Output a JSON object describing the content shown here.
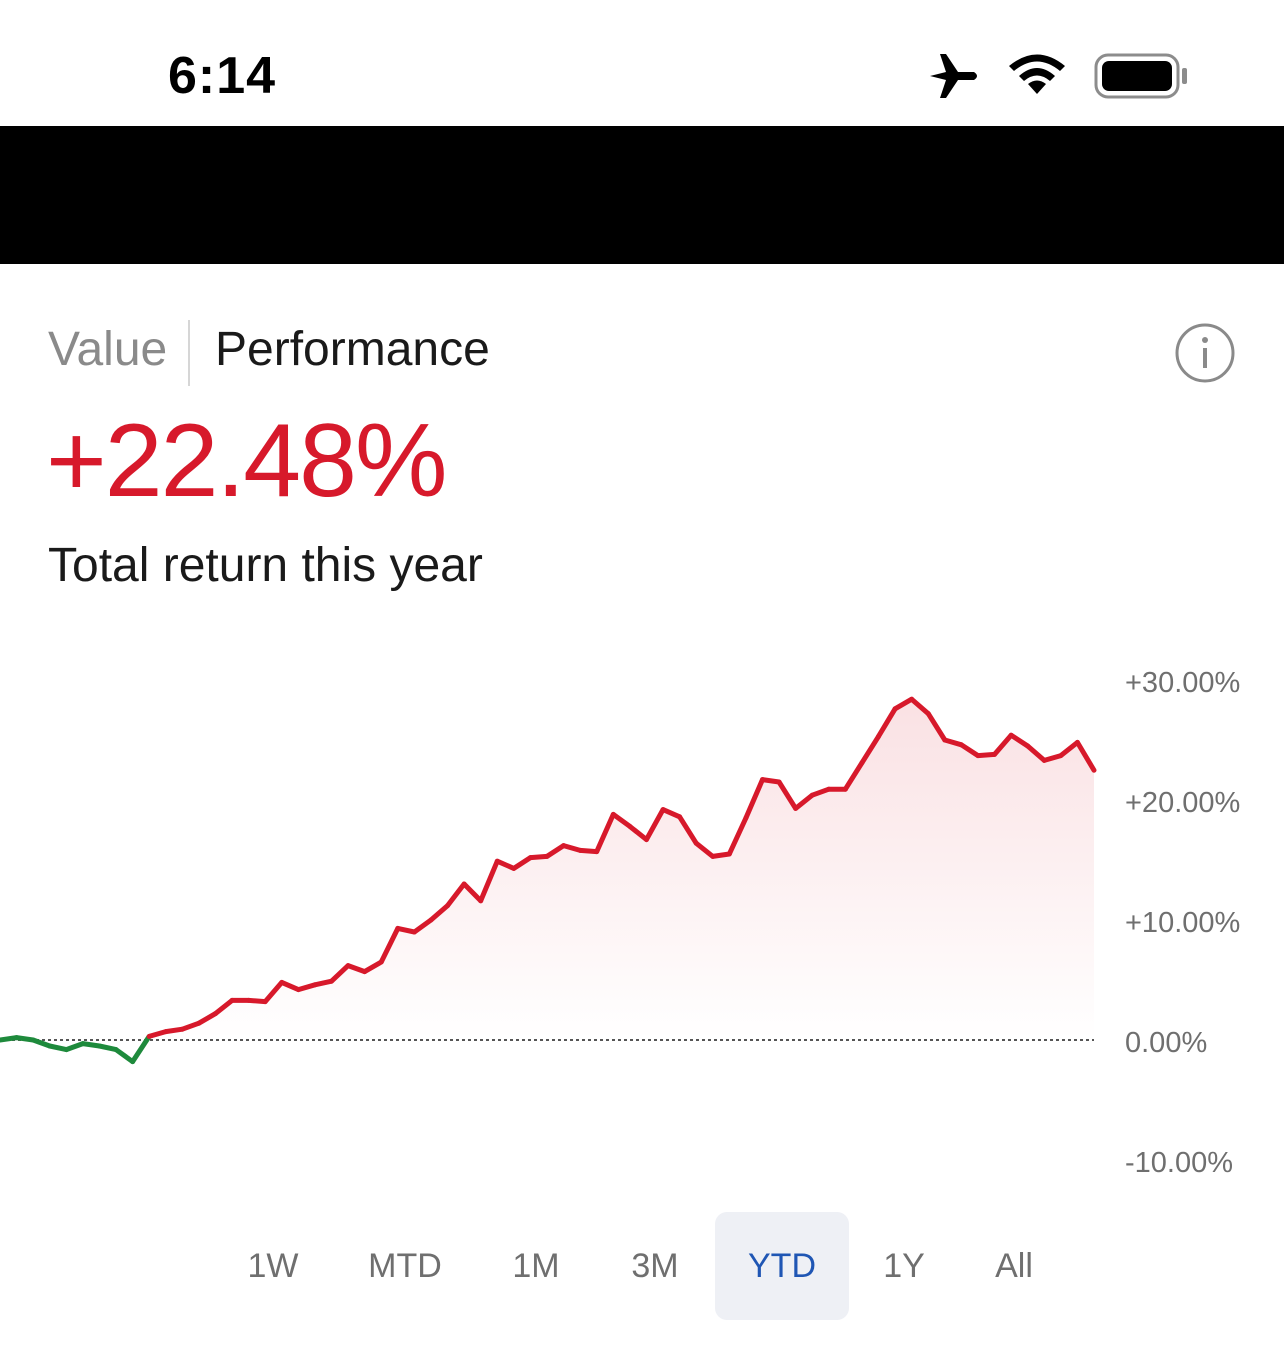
{
  "status_bar": {
    "time": "6:14",
    "icons": [
      "airplane-icon",
      "wifi-icon",
      "battery-icon"
    ]
  },
  "tabs": {
    "value_label": "Value",
    "performance_label": "Performance",
    "active": "Performance"
  },
  "info_icon": "info-icon",
  "summary": {
    "total_return": "+22.48%",
    "caption": "Total return this year"
  },
  "colors": {
    "positive": "#d7192b",
    "negative": "#1e8a3c",
    "selected_range": "#1f56b4"
  },
  "chart_data": {
    "type": "area",
    "title": "",
    "xlabel": "",
    "ylabel": "",
    "ylim": [
      -10,
      30
    ],
    "y_ticks": [
      30,
      20,
      10,
      0,
      -10
    ],
    "y_tick_labels": [
      "+30.00%",
      "+20.00%",
      "+10.00%",
      "0.00%",
      "-10.00%"
    ],
    "baseline": 0,
    "grid": false,
    "series": [
      {
        "values": [
          0,
          0.2,
          0,
          -0.5,
          -0.8,
          -0.3,
          -0.5,
          -0.8,
          -1.8,
          0.3,
          0.7,
          0.9,
          1.4,
          2.2,
          3.3,
          3.3,
          3.2,
          4.8,
          4.2,
          4.6,
          4.9,
          6.2,
          5.7,
          6.5,
          9.3,
          9.0,
          10.0,
          11.2,
          13.0,
          11.6,
          14.9,
          14.3,
          15.2,
          15.3,
          16.2,
          15.8,
          15.7,
          18.8,
          17.8,
          16.7,
          19.2,
          18.6,
          16.4,
          15.3,
          15.5,
          18.5,
          21.7,
          21.5,
          19.3,
          20.4,
          20.9,
          20.9,
          23.1,
          25.3,
          27.6,
          28.4,
          27.2,
          25.0,
          24.6,
          23.7,
          23.8,
          25.4,
          24.5,
          23.3,
          23.7,
          24.8,
          22.48
        ]
      }
    ]
  },
  "ranges": {
    "items": [
      "1W",
      "MTD",
      "1M",
      "3M",
      "YTD",
      "1Y",
      "All"
    ],
    "selected": "YTD"
  }
}
